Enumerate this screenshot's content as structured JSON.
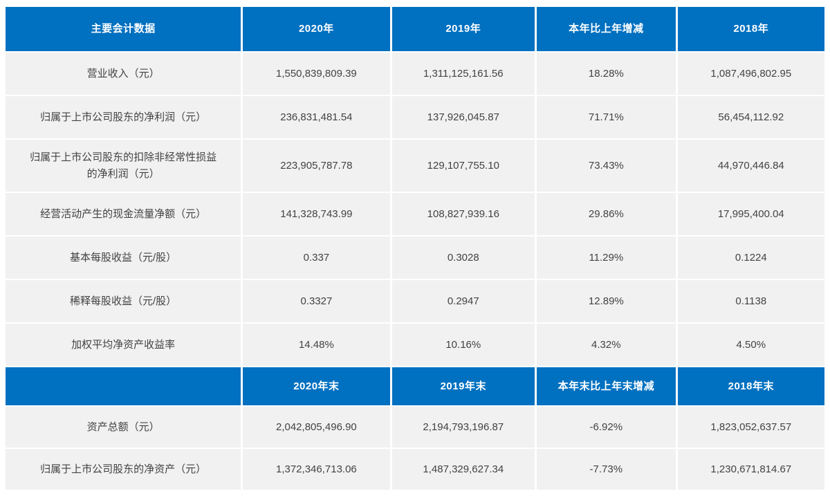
{
  "colors": {
    "header_bg": "#0070C0",
    "header_text": "#FFFFFF",
    "cell_bg": "#F1F1F2",
    "cell_text": "#424242",
    "page_bg": "#FFFFFF"
  },
  "table": {
    "section_annual": {
      "headers": [
        "主要会计数据",
        "2020年",
        "2019年",
        "本年比上年增减",
        "2018年"
      ],
      "rows": [
        [
          "营业收入（元）",
          "1,550,839,809.39",
          "1,311,125,161.56",
          "18.28%",
          "1,087,496,802.95"
        ],
        [
          "归属于上市公司股东的净利润（元）",
          "236,831,481.54",
          "137,926,045.87",
          "71.71%",
          "56,454,112.92"
        ],
        [
          "归属于上市公司股东的扣除非经常性损益的净利润（元）",
          "223,905,787.78",
          "129,107,755.10",
          "73.43%",
          "44,970,446.84"
        ],
        [
          "经营活动产生的现金流量净额（元）",
          "141,328,743.99",
          "108,827,939.16",
          "29.86%",
          "17,995,400.04"
        ],
        [
          "基本每股收益（元/股）",
          "0.337",
          "0.3028",
          "11.29%",
          "0.1224"
        ],
        [
          "稀释每股收益（元/股）",
          "0.3327",
          "0.2947",
          "12.89%",
          "0.1138"
        ],
        [
          "加权平均净资产收益率",
          "14.48%",
          "10.16%",
          "4.32%",
          "4.50%"
        ]
      ]
    },
    "section_yearend": {
      "headers": [
        "",
        "2020年末",
        "2019年末",
        "本年末比上年末增减",
        "2018年末"
      ],
      "rows": [
        [
          "资产总额（元）",
          "2,042,805,496.90",
          "2,194,793,196.87",
          "-6.92%",
          "1,823,052,637.57"
        ],
        [
          "归属于上市公司股东的净资产（元）",
          "1,372,346,713.06",
          "1,487,329,627.34",
          "-7.73%",
          "1,230,671,814.67"
        ]
      ]
    }
  }
}
